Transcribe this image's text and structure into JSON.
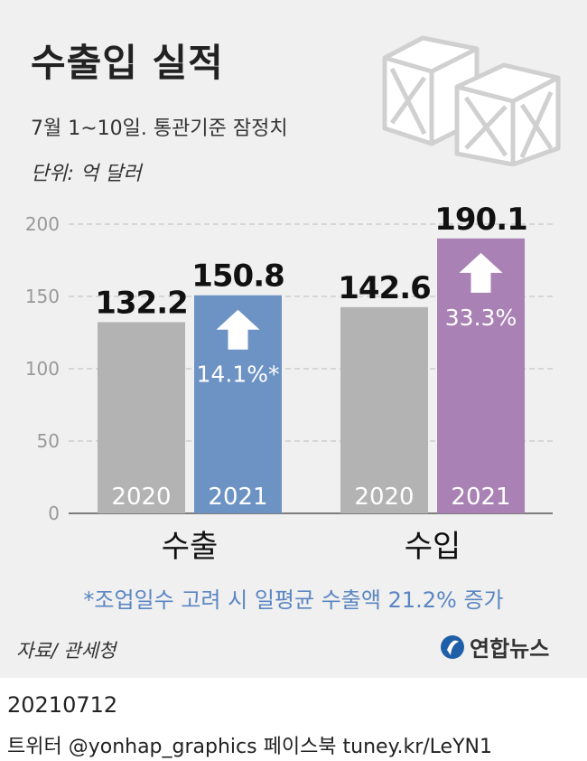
{
  "header": {
    "title": "수출입 실적",
    "subtitle": "7월 1~10일. 통관기준 잠정치",
    "unit": "단위: 억 달러"
  },
  "chart_data": {
    "type": "bar",
    "ylim": [
      0,
      200
    ],
    "yticks": [
      "0",
      "50",
      "100",
      "150",
      "200"
    ],
    "grid": true,
    "groups": [
      {
        "label": "수출",
        "bars": [
          {
            "year": "2020",
            "value": 132.2,
            "value_label": "132.2",
            "color": "#b3b3b3"
          },
          {
            "year": "2021",
            "value": 150.8,
            "value_label": "150.8",
            "color": "#6d93c5",
            "change": "14.1%*"
          }
        ]
      },
      {
        "label": "수입",
        "bars": [
          {
            "year": "2020",
            "value": 142.6,
            "value_label": "142.6",
            "color": "#b3b3b3"
          },
          {
            "year": "2021",
            "value": 190.1,
            "value_label": "190.1",
            "color": "#a981b4",
            "change": "33.3%"
          }
        ]
      }
    ]
  },
  "footnote": "*조업일수 고려 시 일평균 수출액 21.2% 증가",
  "source": "자료/ 관세청",
  "logo": {
    "text": "연합뉴스",
    "icon": "yonhap-logo-icon"
  },
  "date": "20210712",
  "credit": "트위터 @yonhap_graphics  페이스북 tuney.kr/LeYN1"
}
